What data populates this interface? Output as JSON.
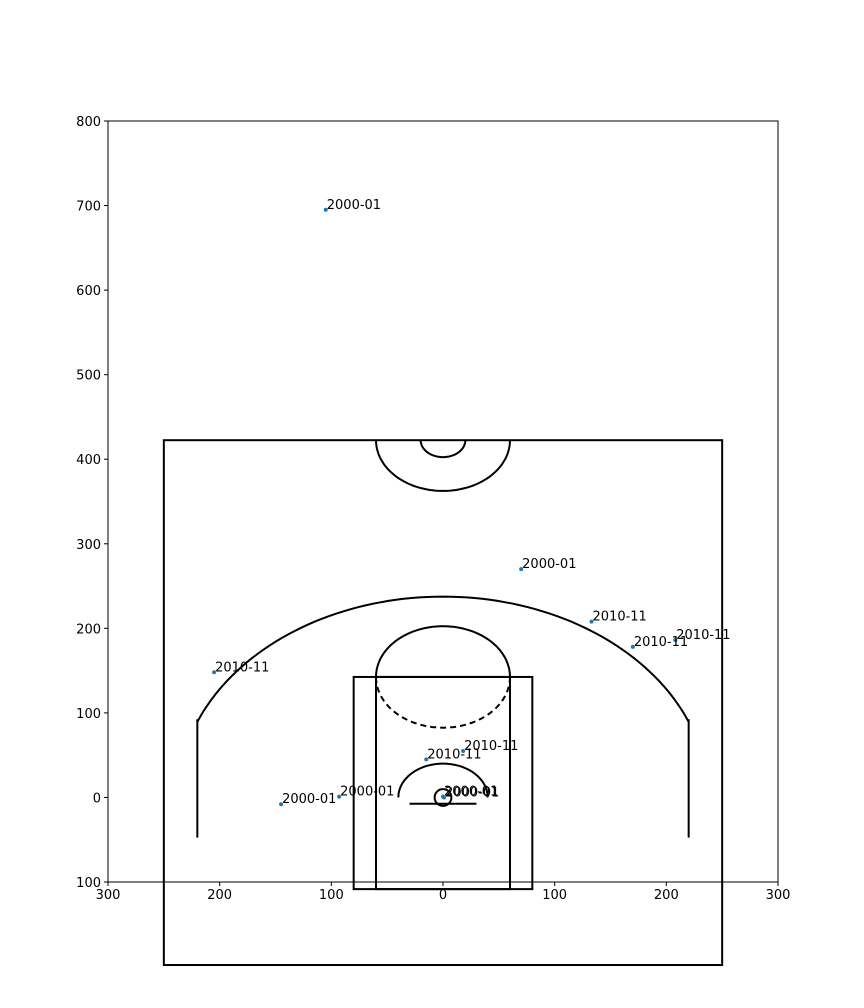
{
  "chart_data": {
    "type": "scatter",
    "xlim": [
      -300,
      300
    ],
    "ylim": [
      -100,
      800
    ],
    "x_tick_values": [
      -300,
      -200,
      -100,
      0,
      100,
      200,
      300
    ],
    "x_tick_labels": [
      "300",
      "200",
      "100",
      "0",
      "100",
      "200",
      "300"
    ],
    "y_tick_values": [
      -100,
      0,
      100,
      200,
      300,
      400,
      500,
      600,
      700,
      800
    ],
    "y_tick_labels": [
      "100",
      "0",
      "100",
      "200",
      "300",
      "400",
      "500",
      "600",
      "700",
      "800"
    ],
    "grid": false,
    "marker_color": "#1f77b4",
    "points": [
      {
        "x": -105,
        "y": 695,
        "label": "2000-01"
      },
      {
        "x": 70,
        "y": 270,
        "label": "2000-01"
      },
      {
        "x": 133,
        "y": 208,
        "label": "2010-11"
      },
      {
        "x": 208,
        "y": 186,
        "label": "2010-11"
      },
      {
        "x": 170,
        "y": 178,
        "label": "2010-11"
      },
      {
        "x": -205,
        "y": 148,
        "label": "2010-11"
      },
      {
        "x": 18,
        "y": 55,
        "label": "2010-11"
      },
      {
        "x": -15,
        "y": 45,
        "label": "2010-11"
      },
      {
        "x": -93,
        "y": 1,
        "label": "2000-01"
      },
      {
        "x": -145,
        "y": -8,
        "label": "2000-01"
      },
      {
        "x": 0,
        "y": 1,
        "label": "2000-01"
      },
      {
        "x": 1,
        "y": 0,
        "label": "2000-01"
      }
    ],
    "court_lines": "black half-court outline"
  }
}
